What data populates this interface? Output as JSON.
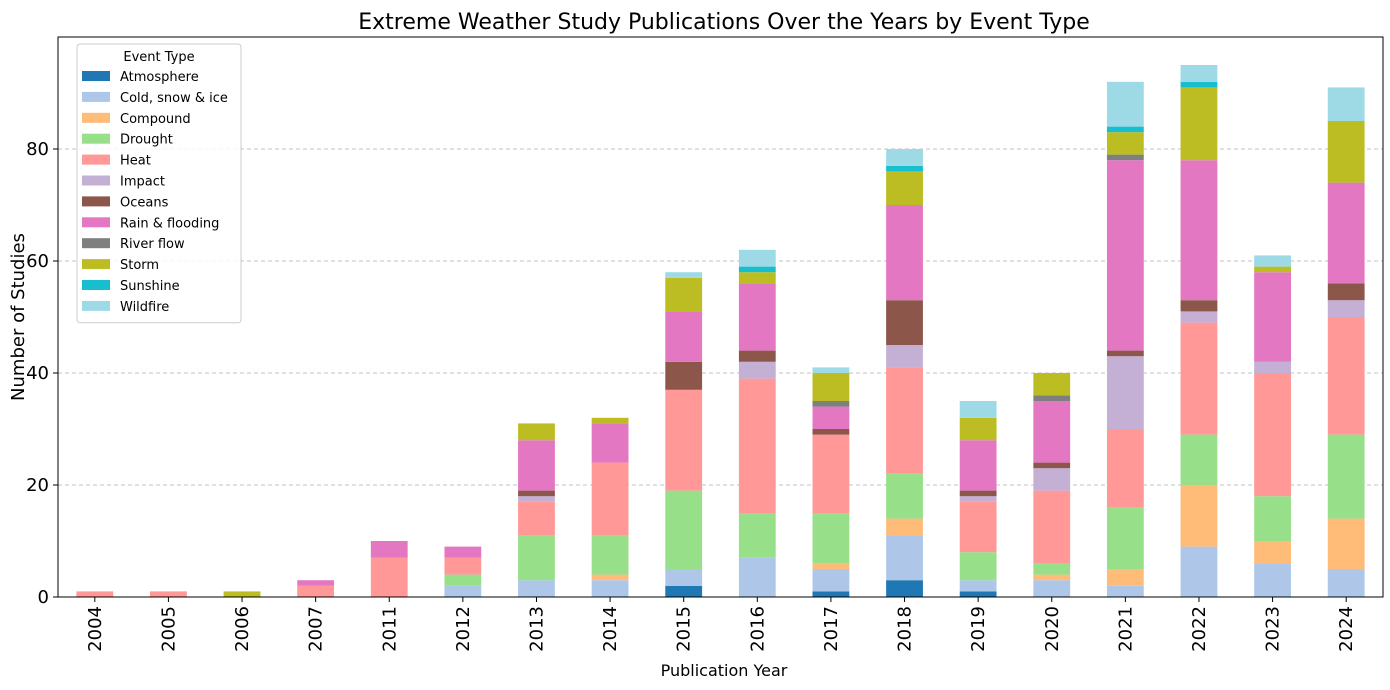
{
  "chart_data": {
    "type": "bar",
    "stacked": true,
    "title": "Extreme Weather Study Publications Over the Years by Event Type",
    "xlabel": "Publication Year",
    "ylabel": "Number of Studies",
    "ylim": [
      0,
      100
    ],
    "yticks": [
      0,
      20,
      40,
      60,
      80
    ],
    "grid": "y-dashed",
    "legend_title": "Event Type",
    "legend_placement": "top-left",
    "categories": [
      "2004",
      "2005",
      "2006",
      "2007",
      "2011",
      "2012",
      "2013",
      "2014",
      "2015",
      "2016",
      "2017",
      "2018",
      "2019",
      "2020",
      "2021",
      "2022",
      "2023",
      "2024"
    ],
    "series": [
      {
        "name": "Atmosphere",
        "color": "#1f77b4",
        "values": [
          0,
          0,
          0,
          0,
          0,
          0,
          0,
          0,
          2,
          0,
          1,
          3,
          1,
          0,
          0,
          0,
          0,
          0
        ]
      },
      {
        "name": "Cold, snow & ice",
        "color": "#aec7e8",
        "values": [
          0,
          0,
          0,
          0,
          0,
          2,
          3,
          3,
          3,
          7,
          4,
          8,
          2,
          3,
          2,
          9,
          6,
          5
        ]
      },
      {
        "name": "Compound",
        "color": "#ffbb78",
        "values": [
          0,
          0,
          0,
          0,
          0,
          0,
          0,
          1,
          0,
          0,
          1,
          3,
          0,
          1,
          3,
          11,
          4,
          9
        ]
      },
      {
        "name": "Drought",
        "color": "#98df8a",
        "values": [
          0,
          0,
          0,
          0,
          0,
          2,
          8,
          7,
          14,
          8,
          9,
          8,
          5,
          2,
          11,
          9,
          8,
          15
        ]
      },
      {
        "name": "Heat",
        "color": "#ff9896",
        "values": [
          1,
          1,
          0,
          2,
          7,
          3,
          6,
          13,
          18,
          24,
          14,
          19,
          9,
          13,
          14,
          20,
          22,
          21
        ]
      },
      {
        "name": "Impact",
        "color": "#c5b0d5",
        "values": [
          0,
          0,
          0,
          0,
          0,
          0,
          1,
          0,
          0,
          3,
          0,
          4,
          1,
          4,
          13,
          2,
          2,
          3
        ]
      },
      {
        "name": "Oceans",
        "color": "#8c564b",
        "values": [
          0,
          0,
          0,
          0,
          0,
          0,
          1,
          0,
          5,
          2,
          1,
          8,
          1,
          1,
          1,
          2,
          0,
          3
        ]
      },
      {
        "name": "Rain & flooding",
        "color": "#e377c2",
        "values": [
          0,
          0,
          0,
          1,
          3,
          2,
          9,
          7,
          9,
          12,
          4,
          17,
          9,
          11,
          34,
          25,
          16,
          18
        ]
      },
      {
        "name": "River flow",
        "color": "#7f7f7f",
        "values": [
          0,
          0,
          0,
          0,
          0,
          0,
          0,
          0,
          0,
          0,
          1,
          0,
          0,
          1,
          1,
          0,
          0,
          0
        ]
      },
      {
        "name": "Storm",
        "color": "#bcbd22",
        "values": [
          0,
          0,
          1,
          0,
          0,
          0,
          3,
          1,
          6,
          2,
          5,
          6,
          4,
          4,
          4,
          13,
          1,
          11
        ]
      },
      {
        "name": "Sunshine",
        "color": "#17becf",
        "values": [
          0,
          0,
          0,
          0,
          0,
          0,
          0,
          0,
          0,
          1,
          0,
          1,
          0,
          0,
          1,
          1,
          0,
          0
        ]
      },
      {
        "name": "Wildfire",
        "color": "#9edae5",
        "values": [
          0,
          0,
          0,
          0,
          0,
          0,
          0,
          0,
          1,
          3,
          1,
          3,
          3,
          0,
          8,
          3,
          2,
          6
        ]
      }
    ]
  }
}
